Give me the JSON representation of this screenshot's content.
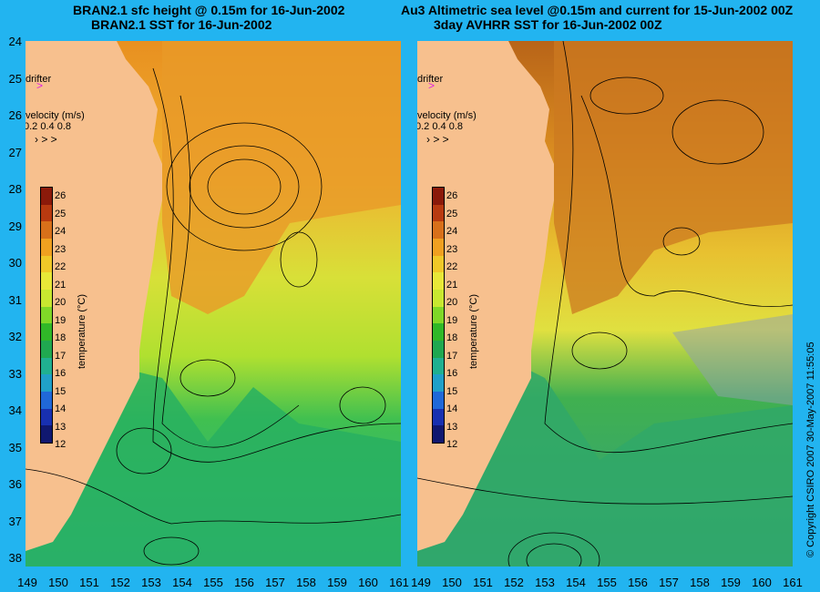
{
  "left_panel": {
    "title_line1": "BRAN2.1 sfc height @ 0.15m for 16-Jun-2002",
    "title_line2": "BRAN2.1 SST for 16-Jun-2002"
  },
  "right_panel": {
    "title_line1": "Au3 Altimetric sea level  @0.15m and current for 15-Jun-2002 00Z",
    "title_line2": "3day AVHRR SST for 16-Jun-2002 00Z"
  },
  "legend": {
    "drifter_label": "drifter",
    "velocity_label": "velocity (m/s)",
    "velocity_scale": "0.2 0.4 0.8",
    "colorbar_title": "temperature (°C)",
    "colorbar_ticks": [
      "26",
      "25",
      "24",
      "23",
      "22",
      "21",
      "20",
      "19",
      "18",
      "17",
      "16",
      "15",
      "14",
      "13",
      "12"
    ],
    "colorbar_colors": [
      "#8b1a0a",
      "#b83a10",
      "#d8701a",
      "#f0a020",
      "#f0c828",
      "#e8e838",
      "#c8e830",
      "#80d828",
      "#30b828",
      "#20a850",
      "#20b090",
      "#20a0c8",
      "#2068d8",
      "#1830b0",
      "#101870"
    ]
  },
  "axes": {
    "lat_ticks": [
      "24",
      "25",
      "26",
      "27",
      "28",
      "29",
      "30",
      "31",
      "32",
      "33",
      "34",
      "35",
      "36",
      "37",
      "38"
    ],
    "left_lon_ticks": [
      "149",
      "150",
      "151",
      "152",
      "153",
      "154",
      "155",
      "156",
      "157",
      "158",
      "159",
      "160",
      "161"
    ],
    "right_lon_ticks": [
      "149",
      "150",
      "151",
      "152",
      "153",
      "154",
      "155",
      "156",
      "157",
      "158",
      "159",
      "160",
      "161"
    ]
  },
  "copyright": "© Copyright CSIRO 2007   30-May-2007 11:55:05",
  "colors": {
    "background": "#22b4f0",
    "land": "#f7c08e",
    "drifter": "#e020e0"
  }
}
